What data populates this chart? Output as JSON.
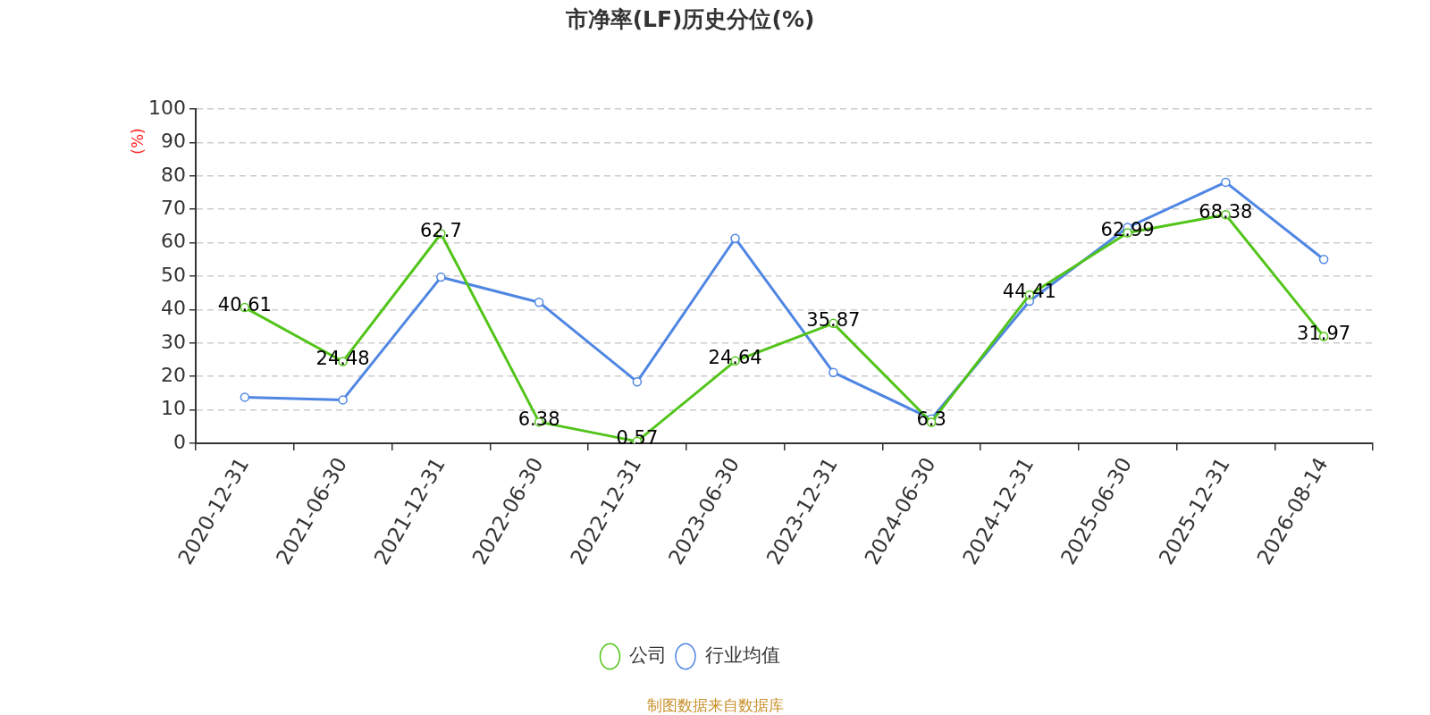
{
  "chart_data": {
    "type": "line",
    "title": "市净率(LF)历史分位(%)",
    "ylabel": "(%)",
    "categories": [
      "2020-12-31",
      "2021-06-30",
      "2021-12-31",
      "2022-06-30",
      "2022-12-31",
      "2023-06-30",
      "2023-12-31",
      "2024-06-30",
      "2024-12-31",
      "2025-06-30",
      "2025-12-31",
      "2026-08-14"
    ],
    "series": [
      {
        "name": "公司",
        "color": "#52c41a",
        "values": [
          40.61,
          24.48,
          62.7,
          6.38,
          0.57,
          24.64,
          35.87,
          6.3,
          44.41,
          62.99,
          68.38,
          31.97
        ],
        "value_labels": [
          "40.61",
          "24.48",
          "62.7",
          "6.38",
          "0.57",
          "24.64",
          "35.87",
          "6.3",
          "44.41",
          "62.99",
          "68.38",
          "31.97"
        ]
      },
      {
        "name": "行业均值",
        "color": "#4f86e3",
        "values": [
          13.8,
          13.0,
          49.7,
          42.2,
          18.4,
          61.3,
          21.2,
          7.3,
          42.5,
          64.6,
          78.1,
          55.0
        ]
      }
    ],
    "ylim": [
      0,
      100
    ],
    "yticks": [
      0,
      10,
      20,
      30,
      40,
      50,
      60,
      70,
      80,
      90,
      100
    ],
    "grid": "y",
    "legend": "bottom",
    "marker": "circle",
    "annotations": [
      "制图数据来自数据库"
    ]
  }
}
